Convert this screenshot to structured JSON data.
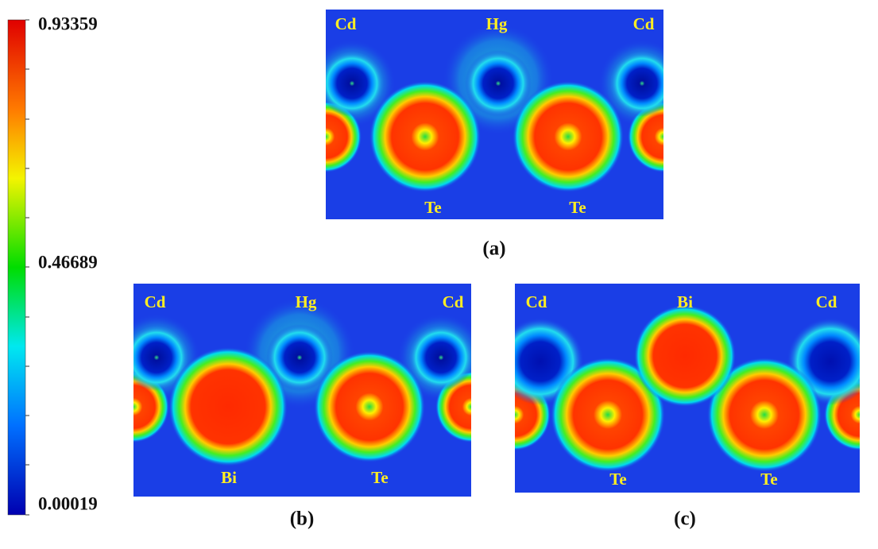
{
  "colorbar": {
    "max": "0.93359",
    "mid": "0.46689",
    "min": "0.00019"
  },
  "panels": [
    {
      "caption": "(a)",
      "labels": [
        "Cd",
        "Hg",
        "Cd",
        "Te",
        "Te"
      ]
    },
    {
      "caption": "(b)",
      "labels": [
        "Cd",
        "Hg",
        "Cd",
        "Bi",
        "Te"
      ]
    },
    {
      "caption": "(c)",
      "labels": [
        "Cd",
        "Bi",
        "Cd",
        "Te",
        "Te"
      ]
    }
  ]
}
